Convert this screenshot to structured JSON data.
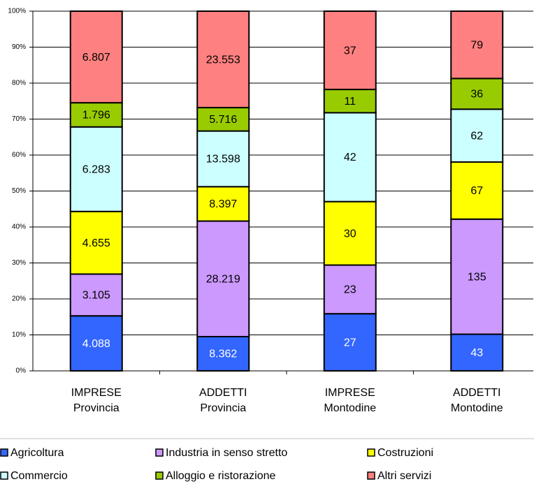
{
  "chart_data": {
    "type": "bar",
    "stacked": "percent",
    "categories": [
      [
        "IMPRESE",
        "Provincia"
      ],
      [
        "ADDETTI",
        "Provincia"
      ],
      [
        "IMPRESE",
        "Montodine"
      ],
      [
        "ADDETTI",
        "Montodine"
      ]
    ],
    "series": [
      {
        "name": "Agricoltura",
        "color": "#3366ff",
        "label_color": "#ffffff",
        "values": [
          4088,
          8362,
          27,
          43
        ],
        "value_labels": [
          "4.088",
          "8.362",
          "27",
          "43"
        ]
      },
      {
        "name": "Industria in senso stretto",
        "color": "#cc99ff",
        "label_color": "#000000",
        "values": [
          3105,
          28219,
          23,
          135
        ],
        "value_labels": [
          "3.105",
          "28.219",
          "23",
          "135"
        ]
      },
      {
        "name": "Costruzioni",
        "color": "#ffff00",
        "label_color": "#000000",
        "values": [
          4655,
          8397,
          30,
          67
        ],
        "value_labels": [
          "4.655",
          "8.397",
          "30",
          "67"
        ]
      },
      {
        "name": "Commercio",
        "color": "#ccffff",
        "label_color": "#000000",
        "values": [
          6283,
          13598,
          42,
          62
        ],
        "value_labels": [
          "6.283",
          "13.598",
          "42",
          "62"
        ]
      },
      {
        "name": "Alloggio e ristorazione",
        "color": "#99cc00",
        "label_color": "#000000",
        "values": [
          1796,
          5716,
          11,
          36
        ],
        "value_labels": [
          "1.796",
          "5.716",
          "11",
          "36"
        ]
      },
      {
        "name": "Altri servizi",
        "color": "#ff8080",
        "label_color": "#000000",
        "values": [
          6807,
          23553,
          37,
          79
        ],
        "value_labels": [
          "6.807",
          "23.553",
          "37",
          "79"
        ]
      }
    ],
    "ylim": [
      0,
      100
    ],
    "yticks": [
      {
        "value": 0,
        "label": "0%"
      },
      {
        "value": 10,
        "label": "10%"
      },
      {
        "value": 20,
        "label": "20%"
      },
      {
        "value": 30,
        "label": "30%"
      },
      {
        "value": 40,
        "label": "40%"
      },
      {
        "value": 50,
        "label": "50%"
      },
      {
        "value": 60,
        "label": "60%"
      },
      {
        "value": 70,
        "label": "70%"
      },
      {
        "value": 80,
        "label": "80%"
      },
      {
        "value": 90,
        "label": "90%"
      },
      {
        "value": 100,
        "label": "100%"
      }
    ],
    "grid": true,
    "legend": "bottom"
  }
}
